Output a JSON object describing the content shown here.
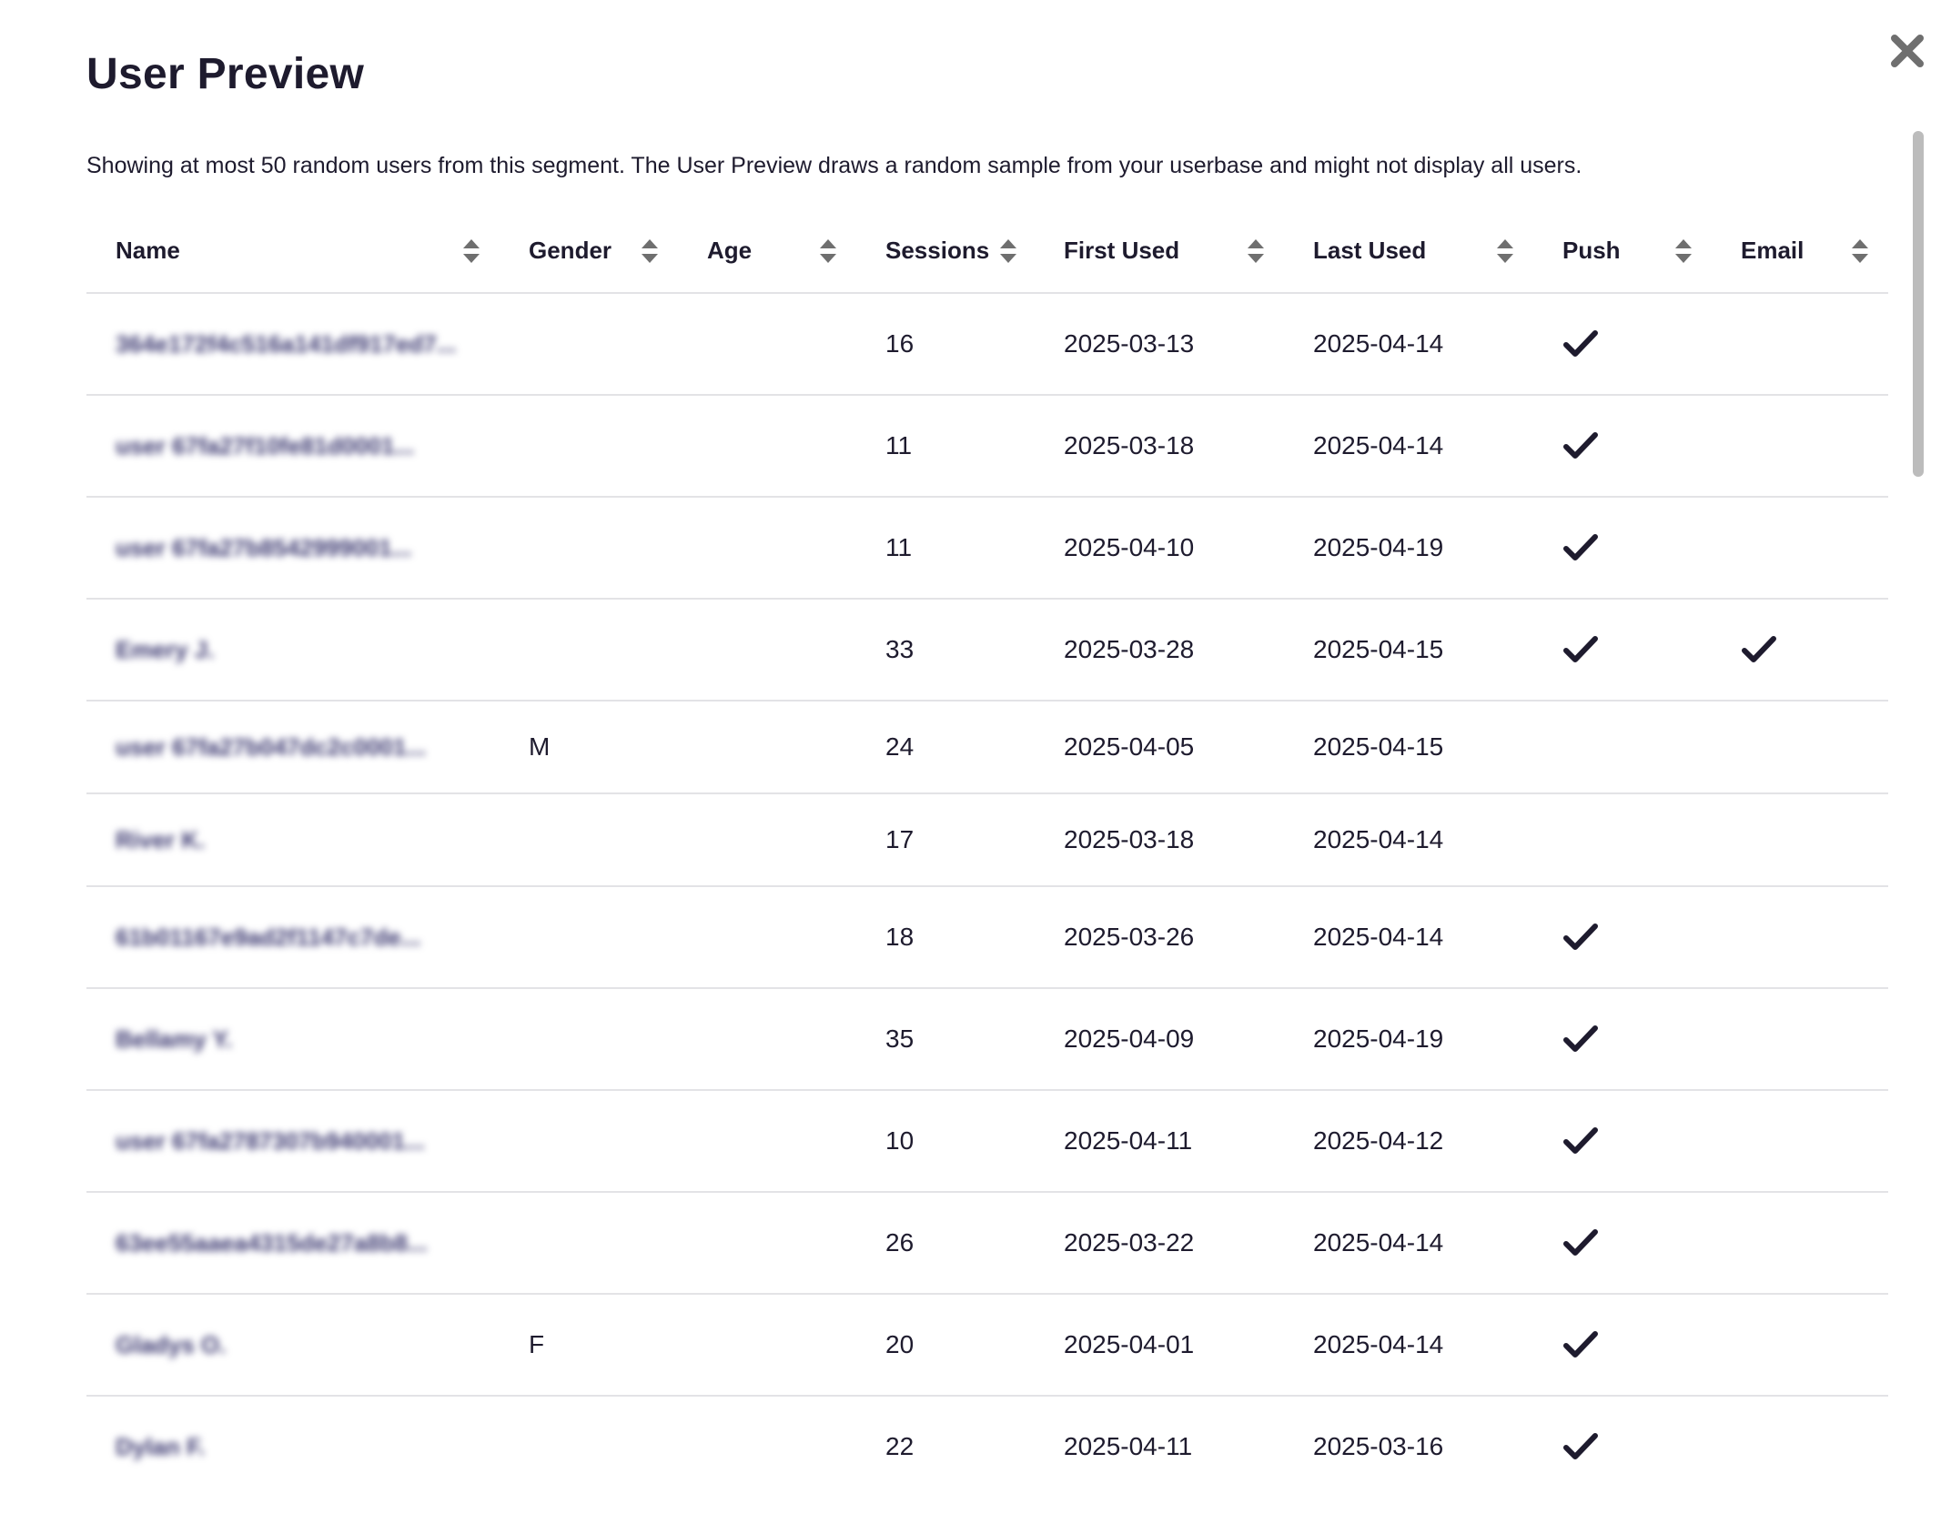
{
  "modal": {
    "title": "User Preview",
    "description": "Showing at most 50 random users from this segment. The User Preview draws a random sample from your userbase and might not display all users.",
    "close_icon": "close-icon"
  },
  "table": {
    "columns": [
      {
        "key": "name",
        "label": "Name"
      },
      {
        "key": "gender",
        "label": "Gender"
      },
      {
        "key": "age",
        "label": "Age"
      },
      {
        "key": "sessions",
        "label": "Sessions"
      },
      {
        "key": "first_used",
        "label": "First Used"
      },
      {
        "key": "last_used",
        "label": "Last Used"
      },
      {
        "key": "push",
        "label": "Push"
      },
      {
        "key": "email",
        "label": "Email"
      }
    ],
    "sort_icon": "sort-icon",
    "check_icon": "check-icon",
    "rows": [
      {
        "name": "364e172f4c516a141df917ed7...",
        "gender": "",
        "age": "",
        "sessions": "16",
        "first_used": "2025-03-13",
        "last_used": "2025-04-14",
        "push": true,
        "email": false
      },
      {
        "name": "user 67fa27f10fe81d0001...",
        "gender": "",
        "age": "",
        "sessions": "11",
        "first_used": "2025-03-18",
        "last_used": "2025-04-14",
        "push": true,
        "email": false
      },
      {
        "name": "user 67fa27b8542999001...",
        "gender": "",
        "age": "",
        "sessions": "11",
        "first_used": "2025-04-10",
        "last_used": "2025-04-19",
        "push": true,
        "email": false
      },
      {
        "name": "Emery J.",
        "gender": "",
        "age": "",
        "sessions": "33",
        "first_used": "2025-03-28",
        "last_used": "2025-04-15",
        "push": true,
        "email": true
      },
      {
        "name": "user 67fa27b047dc2c0001...",
        "gender": "M",
        "age": "",
        "sessions": "24",
        "first_used": "2025-04-05",
        "last_used": "2025-04-15",
        "push": false,
        "email": false
      },
      {
        "name": "River K.",
        "gender": "",
        "age": "",
        "sessions": "17",
        "first_used": "2025-03-18",
        "last_used": "2025-04-14",
        "push": false,
        "email": false
      },
      {
        "name": "61b01167e9ad2f1147c7de...",
        "gender": "",
        "age": "",
        "sessions": "18",
        "first_used": "2025-03-26",
        "last_used": "2025-04-14",
        "push": true,
        "email": false
      },
      {
        "name": "Bellamy Y.",
        "gender": "",
        "age": "",
        "sessions": "35",
        "first_used": "2025-04-09",
        "last_used": "2025-04-19",
        "push": true,
        "email": false
      },
      {
        "name": "user 67fa2787307b940001...",
        "gender": "",
        "age": "",
        "sessions": "10",
        "first_used": "2025-04-11",
        "last_used": "2025-04-12",
        "push": true,
        "email": false
      },
      {
        "name": "63ee55aaea4315de27a8b8...",
        "gender": "",
        "age": "",
        "sessions": "26",
        "first_used": "2025-03-22",
        "last_used": "2025-04-14",
        "push": true,
        "email": false
      },
      {
        "name": "Gladys O.",
        "gender": "F",
        "age": "",
        "sessions": "20",
        "first_used": "2025-04-01",
        "last_used": "2025-04-14",
        "push": true,
        "email": false
      },
      {
        "name": "Dylan F.",
        "gender": "",
        "age": "",
        "sessions": "22",
        "first_used": "2025-04-11",
        "last_used": "2025-03-16",
        "push": true,
        "email": false
      }
    ]
  },
  "colors": {
    "text": "#1e1b2e",
    "divider": "#e3e3e6",
    "sort_icon": "#6f6f6f",
    "close_icon": "#6f6f6f",
    "scrollbar": "#bcbcbc"
  }
}
